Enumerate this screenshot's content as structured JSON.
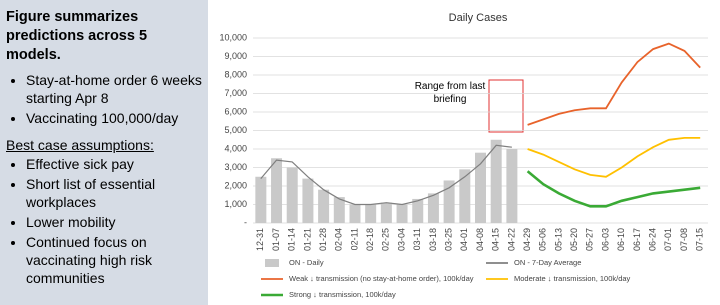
{
  "panel": {
    "title": "Figure summarizes predictions across 5 models.",
    "bullets": [
      "Stay-at-home order 6 weeks starting Apr 8",
      "Vaccinating 100,000/day"
    ],
    "subheading": "Best case assumptions:",
    "assumptions": [
      "Effective sick pay",
      "Short list of essential workplaces",
      "Lower mobility",
      "Continued focus on vaccinating high risk communities"
    ]
  },
  "chart_data": {
    "type": "line",
    "title": "Daily Cases",
    "annotation": "Range from last briefing",
    "categories": [
      "12-31",
      "01-07",
      "01-14",
      "01-21",
      "01-28",
      "02-04",
      "02-11",
      "02-18",
      "02-25",
      "03-04",
      "03-11",
      "03-18",
      "03-25",
      "04-01",
      "04-08",
      "04-15",
      "04-22",
      "04-29",
      "05-06",
      "05-13",
      "05-20",
      "05-27",
      "06-03",
      "06-10",
      "06-17",
      "06-24",
      "07-01",
      "07-08",
      "07-15"
    ],
    "ylim": [
      0,
      10000
    ],
    "yticks": [
      {
        "value": 0,
        "label": "-"
      },
      {
        "value": 1000,
        "label": "1,000"
      },
      {
        "value": 2000,
        "label": "2,000"
      },
      {
        "value": 3000,
        "label": "3,000"
      },
      {
        "value": 4000,
        "label": "4,000"
      },
      {
        "value": 5000,
        "label": "5,000"
      },
      {
        "value": 6000,
        "label": "6,000"
      },
      {
        "value": 7000,
        "label": "7,000"
      },
      {
        "value": 8000,
        "label": "8,000"
      },
      {
        "value": 9000,
        "label": "9,000"
      },
      {
        "value": 10000,
        "label": "10,000"
      }
    ],
    "grid": true,
    "series": [
      {
        "name": "ON - Daily",
        "kind": "bar",
        "color": "#c9c9c9",
        "values": [
          2500,
          3500,
          3000,
          2400,
          1800,
          1400,
          1000,
          1000,
          1100,
          1000,
          1300,
          1600,
          2300,
          2900,
          3800,
          4500,
          4000,
          null,
          null,
          null,
          null,
          null,
          null,
          null,
          null,
          null,
          null,
          null,
          null
        ]
      },
      {
        "name": "ON - 7-Day Average",
        "kind": "line",
        "color": "#7f7f7f",
        "values": [
          2400,
          3400,
          3300,
          2500,
          1800,
          1300,
          1000,
          1000,
          1100,
          1000,
          1200,
          1500,
          1900,
          2500,
          3200,
          4200,
          4100,
          null,
          null,
          null,
          null,
          null,
          null,
          null,
          null,
          null,
          null,
          null,
          null
        ]
      },
      {
        "name": "Weak ↓ transmission (no stay-at-home order), 100k/day",
        "kind": "line",
        "color": "#e8632b",
        "values": [
          null,
          null,
          null,
          null,
          null,
          null,
          null,
          null,
          null,
          null,
          null,
          null,
          null,
          null,
          null,
          null,
          null,
          5300,
          5600,
          5900,
          6100,
          6200,
          6200,
          7600,
          8700,
          9400,
          9700,
          9300,
          8400
        ]
      },
      {
        "name": "Moderate ↓ transmission, 100k/day",
        "kind": "line",
        "color": "#ffc000",
        "values": [
          null,
          null,
          null,
          null,
          null,
          null,
          null,
          null,
          null,
          null,
          null,
          null,
          null,
          null,
          null,
          null,
          null,
          4000,
          3700,
          3300,
          2900,
          2600,
          2500,
          3000,
          3600,
          4100,
          4500,
          4600,
          4600
        ]
      },
      {
        "name": "Strong ↓ transmission, 100k/day",
        "kind": "line",
        "color": "#3aaa35",
        "values": [
          null,
          null,
          null,
          null,
          null,
          null,
          null,
          null,
          null,
          null,
          null,
          null,
          null,
          null,
          null,
          null,
          null,
          2800,
          2100,
          1600,
          1200,
          900,
          900,
          1200,
          1400,
          1600,
          1700,
          1800,
          1900
        ]
      }
    ]
  }
}
